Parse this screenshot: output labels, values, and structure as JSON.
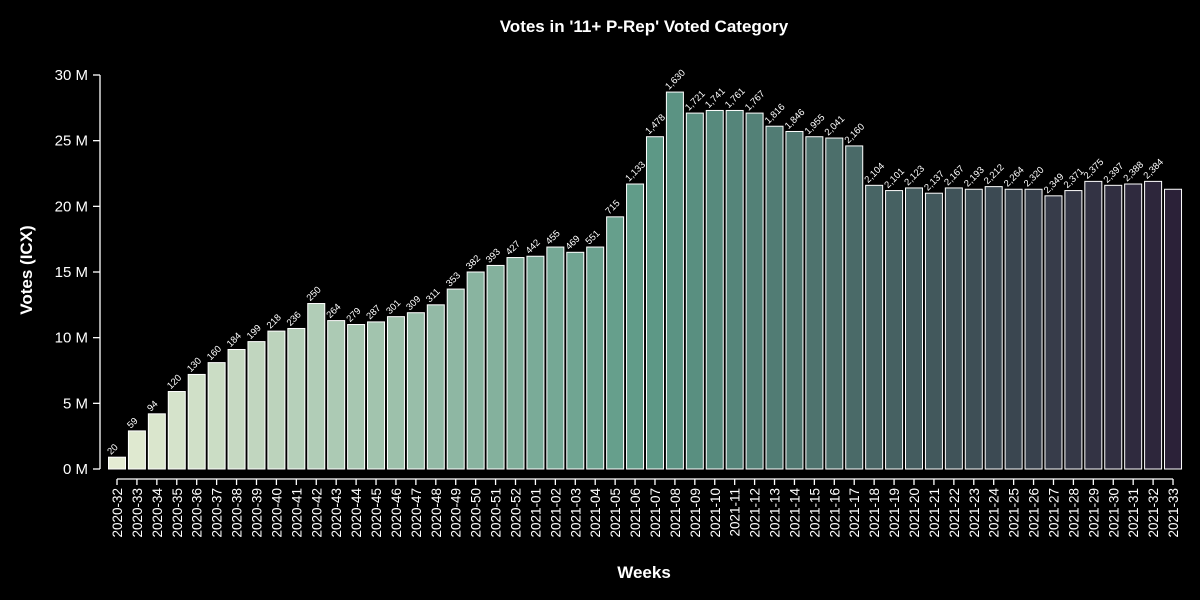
{
  "chart_data": {
    "type": "bar",
    "title": "Votes in '11+ P-Rep' Voted Category",
    "xlabel": "Weeks",
    "ylabel": "Votes (ICX)",
    "ylim": [
      0,
      30000000
    ],
    "yticks": [
      {
        "value": 0,
        "label": "0 M"
      },
      {
        "value": 5000000,
        "label": "5 M"
      },
      {
        "value": 10000000,
        "label": "10 M"
      },
      {
        "value": 15000000,
        "label": "15 M"
      },
      {
        "value": 20000000,
        "label": "20 M"
      },
      {
        "value": 25000000,
        "label": "25 M"
      },
      {
        "value": 30000000,
        "label": "30 M"
      }
    ],
    "color_start": "#e4ecd3",
    "color_mid": "#5e9a88",
    "color_end": "#2b2138",
    "grid": false,
    "categories": [
      "2020-32",
      "2020-33",
      "2020-34",
      "2020-35",
      "2020-36",
      "2020-37",
      "2020-38",
      "2020-39",
      "2020-40",
      "2020-41",
      "2020-42",
      "2020-43",
      "2020-44",
      "2020-45",
      "2020-46",
      "2020-47",
      "2020-48",
      "2020-49",
      "2020-50",
      "2020-51",
      "2020-52",
      "2021-01",
      "2021-02",
      "2021-03",
      "2021-04",
      "2021-05",
      "2021-06",
      "2021-07",
      "2021-08",
      "2021-09",
      "2021-10",
      "2021-11",
      "2021-12",
      "2021-13",
      "2021-14",
      "2021-15",
      "2021-16",
      "2021-17",
      "2021-18",
      "2021-19",
      "2021-20",
      "2021-21",
      "2021-22",
      "2021-23",
      "2021-24",
      "2021-25",
      "2021-26",
      "2021-27",
      "2021-28",
      "2021-29",
      "2021-30",
      "2021-31",
      "2021-32",
      "2021-33"
    ],
    "values": [
      900000,
      2900000,
      4200000,
      5900000,
      7200000,
      8100000,
      9100000,
      9700000,
      10500000,
      10700000,
      12600000,
      11300000,
      11000000,
      11200000,
      11600000,
      11900000,
      12500000,
      13700000,
      15000000,
      15500000,
      16100000,
      16200000,
      16900000,
      16500000,
      16900000,
      19200000,
      21700000,
      25300000,
      28700000,
      27100000,
      27300000,
      27300000,
      27100000,
      26100000,
      25700000,
      25300000,
      25200000,
      24600000,
      21600000,
      21200000,
      21400000,
      21000000,
      21400000,
      21300000,
      21500000,
      21300000,
      21300000,
      20800000,
      21200000,
      21900000,
      21600000,
      21700000,
      21900000,
      21300000
    ],
    "bar_labels": [
      "20",
      "59",
      "94",
      "120",
      "130",
      "160",
      "184",
      "199",
      "218",
      "236",
      "250",
      "264",
      "279",
      "287",
      "301",
      "309",
      "311",
      "353",
      "382",
      "393",
      "427",
      "442",
      "455",
      "469",
      "551",
      "715",
      "1,133",
      "1,478",
      "1,630",
      "1,721",
      "1,741",
      "1,761",
      "1,767",
      "1,816",
      "1,846",
      "1,955",
      "2,041",
      "2,160",
      "2,104",
      "2,101",
      "2,123",
      "2,137",
      "2,167",
      "2,193",
      "2,212",
      "2,264",
      "2,320",
      "2,349",
      "2,371",
      "2,375",
      "2,397",
      "2,388",
      "2,384",
      ""
    ]
  }
}
